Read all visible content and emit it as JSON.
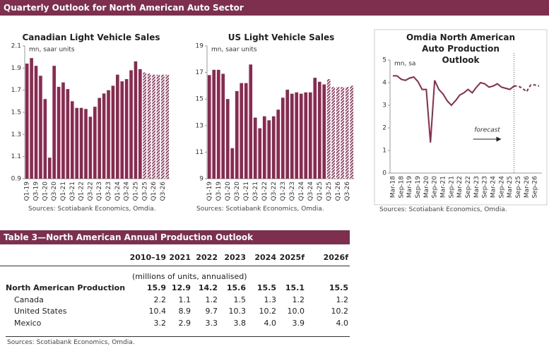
{
  "header": {
    "title": "Quarterly Outlook for North American Auto Sector"
  },
  "chart_data": [
    {
      "type": "bar",
      "title": "Canadian Light Vehicle Sales",
      "y_unit": "mn, saar units",
      "color": "#8b2a4e",
      "categories": [
        "Q1-19",
        null,
        "Q3-19",
        null,
        "Q1-20",
        null,
        "Q3-20",
        null,
        "Q1-21",
        null,
        "Q3-21",
        null,
        "Q1-22",
        null,
        "Q3-22",
        null,
        "Q1-23",
        null,
        "Q3-23",
        null,
        "Q1-24",
        null,
        "Q3-24",
        null,
        "Q1-25",
        null,
        "Q3-25",
        null,
        "Q1-26",
        null,
        "Q3-26",
        null
      ],
      "values": [
        1.94,
        1.99,
        1.92,
        1.83,
        1.62,
        1.09,
        1.92,
        1.73,
        1.77,
        1.71,
        1.6,
        1.54,
        1.54,
        1.53,
        1.46,
        1.55,
        1.63,
        1.67,
        1.7,
        1.74,
        1.84,
        1.78,
        1.8,
        1.88,
        1.96,
        1.89,
        1.86,
        1.85,
        1.84,
        1.84,
        1.84,
        1.84
      ],
      "hatched_from": "Q3-25",
      "ylim": [
        0.9,
        2.1
      ],
      "yticks": [
        0.9,
        1.1,
        1.3,
        1.5,
        1.7,
        1.9,
        2.1
      ],
      "source": "Sources: Scotiabank Economics, Omdia."
    },
    {
      "type": "bar",
      "title": "US Light Vehicle Sales",
      "y_unit": "mn, saar units",
      "color": "#8b2a4e",
      "categories": [
        "Q1-19",
        null,
        "Q3-19",
        null,
        "Q1-20",
        null,
        "Q3-20",
        null,
        "Q1-21",
        null,
        "Q3-21",
        null,
        "Q1-22",
        null,
        "Q3-22",
        null,
        "Q1-23",
        null,
        "Q3-23",
        null,
        "Q1-24",
        null,
        "Q3-24",
        null,
        "Q1-25",
        null,
        "Q3-25",
        null,
        "Q1-26",
        null,
        "Q3-26",
        null
      ],
      "values": [
        16.8,
        17.2,
        17.2,
        16.9,
        15.0,
        11.3,
        15.6,
        16.2,
        16.2,
        17.6,
        13.6,
        12.8,
        13.7,
        13.4,
        13.7,
        14.2,
        15.1,
        15.7,
        15.4,
        15.5,
        15.4,
        15.5,
        15.5,
        16.6,
        16.3,
        16.1,
        16.5,
        15.9,
        15.9,
        15.9,
        15.9,
        16.0
      ],
      "hatched_from": "Q3-25",
      "ylim": [
        9,
        19
      ],
      "yticks": [
        9,
        11,
        13,
        15,
        17,
        19
      ],
      "source": "Sources: Scotiabank Economics, Omdia."
    },
    {
      "type": "line",
      "title": "Omdia North American Auto Production Outlook",
      "y_unit": "mn, sa",
      "color": "#8b2a4e",
      "categories": [
        "Mar-18",
        null,
        "Sep-18",
        null,
        "Mar-19",
        null,
        "Sep-19",
        null,
        "Mar-20",
        null,
        "Sep-20",
        null,
        "Mar-21",
        null,
        "Sep-21",
        null,
        "Mar-22",
        null,
        "Sep-22",
        null,
        "Mar-23",
        null,
        "Sep-23",
        null,
        "Mar-24",
        null,
        "Sep-24",
        null,
        "Mar-25",
        null,
        "Sep-25",
        null,
        "Mar-26",
        null,
        "Sep-26",
        null
      ],
      "values": [
        4.3,
        4.3,
        4.15,
        4.1,
        4.2,
        4.25,
        4.05,
        3.7,
        3.7,
        1.35,
        4.1,
        3.7,
        3.5,
        3.2,
        3.0,
        3.2,
        3.45,
        3.55,
        3.7,
        3.55,
        3.8,
        4.0,
        3.95,
        3.8,
        3.85,
        3.95,
        3.8,
        3.75,
        3.7,
        3.85,
        3.85,
        3.75,
        3.6,
        3.9,
        3.9,
        3.85
      ],
      "dashed_from": "Sep-25",
      "annotation": "forecast",
      "ylim": [
        0,
        5
      ],
      "yticks": [
        0,
        1,
        2,
        3,
        4,
        5
      ],
      "source": "Sources: Scotiabank Economics, Omdia."
    }
  ],
  "table": {
    "title": "Table 3—North American Annual Production Outlook",
    "columns": [
      "2010–19",
      "2021",
      "2022",
      "2023",
      "2024",
      "2025f",
      "2026f"
    ],
    "note": "(millions of units, annualised)",
    "rows": [
      {
        "label": "North American Production",
        "values": [
          "15.9",
          "12.9",
          "14.2",
          "15.6",
          "15.5",
          "15.1",
          "15.5"
        ]
      },
      {
        "label": "Canada",
        "values": [
          "2.2",
          "1.1",
          "1.2",
          "1.5",
          "1.3",
          "1.2",
          "1.2"
        ]
      },
      {
        "label": "United States",
        "values": [
          "10.4",
          "8.9",
          "9.7",
          "10.3",
          "10.2",
          "10.0",
          "10.2"
        ]
      },
      {
        "label": "Mexico",
        "values": [
          "3.2",
          "2.9",
          "3.3",
          "3.8",
          "4.0",
          "3.9",
          "4.0"
        ]
      }
    ],
    "source": "Sources: Scotiabank Economics, Omdia."
  }
}
